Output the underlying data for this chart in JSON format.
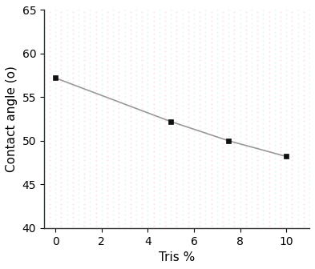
{
  "x": [
    0,
    5,
    7.5,
    10
  ],
  "y": [
    57.2,
    52.2,
    50.0,
    48.2
  ],
  "line_color": "#999999",
  "marker_color": "#111111",
  "marker": "s",
  "marker_size": 5,
  "xlabel": "Tris %",
  "ylabel": "Contact angle (o)",
  "xlim": [
    -0.5,
    11
  ],
  "ylim": [
    40,
    65
  ],
  "xticks": [
    0,
    2,
    4,
    6,
    8,
    10
  ],
  "yticks": [
    40,
    45,
    50,
    55,
    60,
    65
  ],
  "grid_color_cyan": "#c0e8f0",
  "grid_color_pink": "#f0c0d0",
  "background_color": "#ffffff",
  "xlabel_fontsize": 11,
  "ylabel_fontsize": 11,
  "tick_fontsize": 10
}
